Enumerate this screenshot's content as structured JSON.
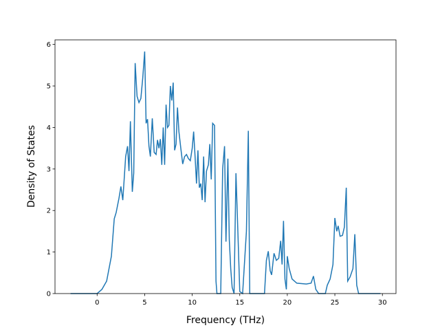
{
  "chart_data": {
    "type": "line",
    "xlabel": "Frequency (THz)",
    "ylabel": "Density of States",
    "xlim": [
      -4.43,
      31.43
    ],
    "ylim": [
      0,
      6.11
    ],
    "xticks": [
      0,
      5,
      10,
      15,
      20,
      25,
      30
    ],
    "yticks": [
      0,
      1,
      2,
      3,
      4,
      5,
      6
    ],
    "series": [
      {
        "color": "#1f77b4",
        "x": [
          -2.8,
          0,
          0.5,
          1,
          1.5,
          1.8,
          2.0,
          2.3,
          2.5,
          2.7,
          3.0,
          3.2,
          3.35,
          3.5,
          3.7,
          3.85,
          4.0,
          4.2,
          4.4,
          4.6,
          4.8,
          5.0,
          5.15,
          5.3,
          5.45,
          5.6,
          5.8,
          6.0,
          6.2,
          6.35,
          6.5,
          6.65,
          6.8,
          6.95,
          7.1,
          7.25,
          7.4,
          7.55,
          7.7,
          7.85,
          8.0,
          8.15,
          8.3,
          8.45,
          8.6,
          8.8,
          9.0,
          9.2,
          9.4,
          9.6,
          9.8,
          10.0,
          10.15,
          10.3,
          10.45,
          10.6,
          10.75,
          10.9,
          11.05,
          11.2,
          11.35,
          11.5,
          11.7,
          11.85,
          12.0,
          12.15,
          12.35,
          12.5,
          12.6,
          13.0,
          13.2,
          13.4,
          13.55,
          13.75,
          13.9,
          14.05,
          14.2,
          14.4,
          14.6,
          14.8,
          15.0,
          15.3,
          15.7,
          15.9,
          16.05,
          17.6,
          17.8,
          18.0,
          18.2,
          18.35,
          18.6,
          18.85,
          19.1,
          19.3,
          19.45,
          19.6,
          19.75,
          19.9,
          20.0,
          20.2,
          20.5,
          21.0,
          22.0,
          22.5,
          22.75,
          23.0,
          23.3,
          24.0,
          24.2,
          24.5,
          24.8,
          25.0,
          25.2,
          25.35,
          25.55,
          25.8,
          26.0,
          26.2,
          26.35,
          26.6,
          26.9,
          27.1,
          27.3,
          27.5,
          29.8
        ],
        "values": [
          0,
          0,
          0.1,
          0.3,
          0.9,
          1.8,
          1.95,
          2.3,
          2.58,
          2.25,
          3.3,
          3.55,
          2.95,
          4.15,
          2.45,
          2.9,
          5.55,
          4.75,
          4.6,
          4.7,
          5.2,
          5.83,
          4.1,
          4.2,
          3.55,
          3.3,
          4.22,
          3.4,
          3.35,
          3.7,
          3.5,
          3.72,
          3.1,
          4.0,
          3.1,
          4.55,
          4.0,
          4.05,
          5.0,
          4.65,
          5.08,
          3.45,
          3.6,
          4.48,
          3.9,
          3.5,
          3.12,
          3.3,
          3.35,
          3.25,
          3.2,
          3.5,
          3.9,
          3.3,
          2.65,
          3.45,
          2.55,
          2.65,
          2.25,
          3.3,
          2.2,
          2.95,
          3.1,
          3.6,
          2.75,
          4.1,
          4.05,
          0.3,
          0,
          0,
          3.0,
          3.55,
          1.25,
          3.25,
          1.3,
          0.6,
          0.15,
          0,
          2.9,
          1.5,
          0.05,
          0,
          1.5,
          3.92,
          0,
          0,
          0.8,
          1.02,
          0.55,
          0.45,
          0.97,
          0.8,
          0.85,
          1.27,
          0.7,
          1.75,
          0.35,
          0.1,
          0.9,
          0.6,
          0.35,
          0.25,
          0.23,
          0.25,
          0.42,
          0.1,
          0,
          0,
          0.2,
          0.35,
          0.7,
          1.82,
          1.5,
          1.63,
          1.38,
          1.4,
          1.6,
          2.55,
          0.3,
          0.4,
          0.6,
          1.43,
          0.2,
          0,
          0
        ]
      }
    ]
  }
}
